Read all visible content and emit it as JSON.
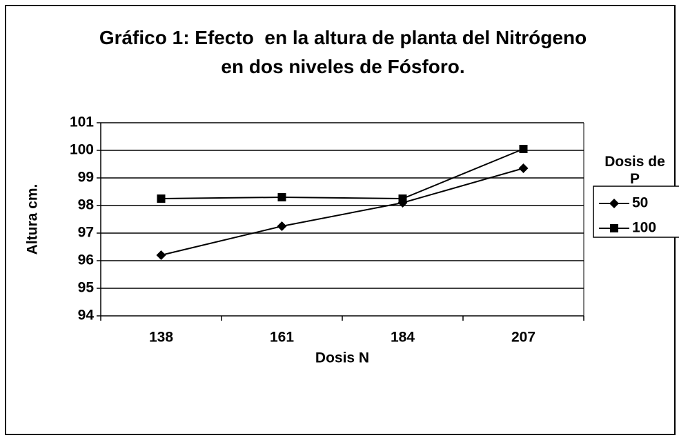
{
  "chart_data": {
    "type": "line",
    "title": "Gráfico 1: Efecto  en la altura de planta del Nitrógeno en dos niveles de Fósforo.",
    "x_label": "Dosis N",
    "y_label": "Altura cm.",
    "categories": [
      "138",
      "161",
      "184",
      "207"
    ],
    "series": [
      {
        "name": "50",
        "color": "#000000",
        "marker": "diamond",
        "values": [
          96.2,
          97.25,
          98.1,
          99.35
        ]
      },
      {
        "name": "100",
        "color": "#000000",
        "marker": "square",
        "values": [
          98.25,
          98.3,
          98.25,
          100.05
        ]
      }
    ],
    "ylim": [
      94,
      101
    ],
    "yticks": [
      94,
      95,
      96,
      97,
      98,
      99,
      100,
      101
    ],
    "grid": true,
    "legend": "right",
    "legend_title": "Dosis de P"
  }
}
